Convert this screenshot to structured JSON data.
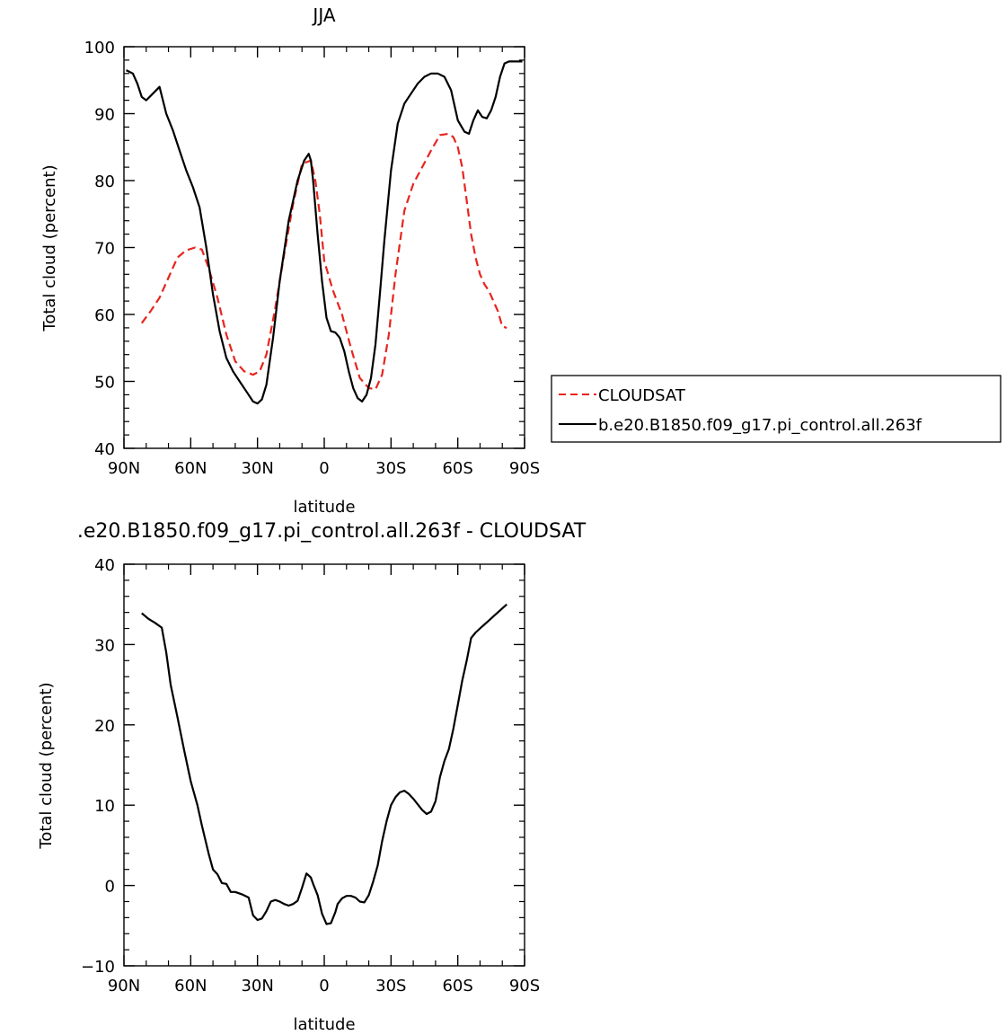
{
  "chart_data": [
    {
      "type": "line",
      "title": "JJA",
      "xlabel": "latitude",
      "ylabel": "Total cloud (percent)",
      "xlim": [
        90,
        -90
      ],
      "ylim": [
        40,
        100
      ],
      "x_tick_values": [
        90,
        60,
        30,
        0,
        -30,
        -60,
        -90
      ],
      "x_tick_labels": [
        "90N",
        "60N",
        "30N",
        "0",
        "30S",
        "60S",
        "90S"
      ],
      "y_tick_values": [
        40,
        50,
        60,
        70,
        80,
        90,
        100
      ],
      "y_tick_labels": [
        "40",
        "50",
        "60",
        "70",
        "80",
        "90",
        "100"
      ],
      "legend": "right",
      "series": [
        {
          "name": "CLOUDSAT",
          "color": "#e8251f",
          "dash": true,
          "x": [
            82,
            78,
            74,
            70,
            66,
            62,
            58,
            55,
            52,
            48,
            44,
            40,
            36,
            32,
            29,
            26,
            22,
            18,
            14,
            10,
            6,
            4,
            2,
            0,
            -4,
            -8,
            -12,
            -16,
            -20,
            -23,
            -26,
            -29,
            -32,
            -36,
            -40,
            -44,
            -48,
            -52,
            -56,
            -58,
            -60,
            -62,
            -64,
            -66,
            -68,
            -70,
            -72,
            -74,
            -76,
            -78,
            -80,
            -82
          ],
          "y": [
            58.7,
            60.5,
            62.5,
            65.5,
            68.5,
            69.6,
            70.0,
            69.7,
            67.0,
            62.5,
            57.0,
            53.0,
            51.5,
            51.0,
            51.5,
            54.0,
            61.0,
            69.0,
            76.5,
            82.5,
            83.0,
            80.0,
            75.0,
            68.0,
            63.5,
            60.0,
            55.0,
            50.5,
            49.0,
            48.8,
            51.0,
            57.0,
            66.0,
            75.5,
            79.5,
            82.0,
            84.5,
            86.8,
            87.0,
            86.5,
            85.0,
            82.0,
            77.0,
            72.0,
            68.5,
            66.0,
            64.5,
            63.5,
            62.0,
            60.5,
            58.2,
            58.0
          ]
        },
        {
          "name": "b.e20.B1850.f09_g17.pi_control.all.263f",
          "color": "#000000",
          "dash": false,
          "x": [
            89,
            86,
            84,
            82,
            80,
            77,
            74,
            71,
            68,
            65,
            62,
            59,
            56,
            53,
            50,
            47,
            44,
            41,
            38,
            35,
            32,
            30,
            28,
            26,
            23,
            20,
            16,
            12,
            9,
            7,
            6,
            5,
            3,
            1,
            -1,
            -3,
            -5,
            -7,
            -9,
            -11,
            -13,
            -15,
            -17,
            -19,
            -21,
            -23,
            -25,
            -27,
            -30,
            -33,
            -36,
            -39,
            -42,
            -45,
            -48,
            -51,
            -54,
            -57,
            -60,
            -63,
            -65,
            -67,
            -69,
            -71,
            -73,
            -75,
            -77,
            -79,
            -81,
            -83,
            -85,
            -87,
            -89
          ],
          "y": [
            96.5,
            96.0,
            94.5,
            92.5,
            92.0,
            93.0,
            94.0,
            90.0,
            87.5,
            84.5,
            81.5,
            79.0,
            76.0,
            70.0,
            63.0,
            57.5,
            53.5,
            51.5,
            50.0,
            48.5,
            47.0,
            46.7,
            47.3,
            49.5,
            56.5,
            65.0,
            74.0,
            80.0,
            83.0,
            84.0,
            83.0,
            80.0,
            72.0,
            65.0,
            59.5,
            57.5,
            57.3,
            56.5,
            54.5,
            51.5,
            49.0,
            47.5,
            47.0,
            48.0,
            50.5,
            55.5,
            63.0,
            71.0,
            81.5,
            88.5,
            91.5,
            93.0,
            94.5,
            95.5,
            96.0,
            96.0,
            95.5,
            93.5,
            89.0,
            87.3,
            87.0,
            89.0,
            90.5,
            89.5,
            89.3,
            90.5,
            92.5,
            95.5,
            97.5,
            97.8,
            97.8,
            97.8,
            97.8
          ]
        }
      ]
    },
    {
      "type": "line",
      "title": ".e20.B1850.f09_g17.pi_control.all.263f  -  CLOUDSAT",
      "xlabel": "latitude",
      "ylabel": "Total cloud (percent)",
      "xlim": [
        90,
        -90
      ],
      "ylim": [
        -10,
        40
      ],
      "x_tick_values": [
        90,
        60,
        30,
        0,
        -30,
        -60,
        -90
      ],
      "x_tick_labels": [
        "90N",
        "60N",
        "30N",
        "0",
        "30S",
        "60S",
        "90S"
      ],
      "y_tick_values": [
        -10,
        0,
        10,
        20,
        30,
        40
      ],
      "y_tick_labels": [
        "−10",
        "0",
        "10",
        "20",
        "30",
        "40"
      ],
      "series": [
        {
          "color": "#000000",
          "dash": false,
          "x": [
            82,
            79,
            76,
            73,
            71,
            69,
            66,
            63,
            60,
            57,
            55,
            52,
            50,
            48,
            46,
            44,
            42,
            40,
            37,
            34,
            32,
            30,
            28,
            26,
            24,
            22,
            20,
            18,
            16,
            14,
            12,
            10,
            8,
            6,
            5,
            3,
            1,
            -1,
            -3,
            -5,
            -6,
            -8,
            -10,
            -12,
            -14,
            -16,
            -18,
            -20,
            -22,
            -24,
            -26,
            -28,
            -30,
            -32,
            -34,
            -36,
            -38,
            -40,
            -42,
            -44,
            -46,
            -48,
            -50,
            -52,
            -54,
            -56,
            -58,
            -60,
            -62,
            -64,
            -66,
            -68,
            -70,
            -72,
            -74,
            -76,
            -78,
            -80,
            -82
          ],
          "y": [
            33.9,
            33.2,
            32.7,
            32.1,
            29.0,
            25.0,
            21.0,
            16.9,
            13.0,
            10.0,
            7.5,
            4.0,
            2.0,
            1.4,
            0.3,
            0.2,
            -0.8,
            -0.8,
            -1.1,
            -1.5,
            -3.7,
            -4.3,
            -4.1,
            -3.2,
            -2.0,
            -1.8,
            -2.0,
            -2.3,
            -2.5,
            -2.3,
            -1.9,
            -0.3,
            1.5,
            1.0,
            0.2,
            -1.2,
            -3.5,
            -4.8,
            -4.7,
            -3.3,
            -2.3,
            -1.6,
            -1.3,
            -1.3,
            -1.5,
            -2.0,
            -2.1,
            -1.2,
            0.5,
            2.5,
            5.5,
            8.0,
            10.0,
            11.0,
            11.6,
            11.8,
            11.4,
            10.8,
            10.1,
            9.4,
            8.9,
            9.2,
            10.5,
            13.5,
            15.5,
            17.0,
            19.5,
            22.5,
            25.5,
            28.0,
            30.8,
            31.5,
            32.0,
            32.5,
            33.0,
            33.5,
            34.0,
            34.5,
            35.0
          ]
        }
      ]
    }
  ]
}
